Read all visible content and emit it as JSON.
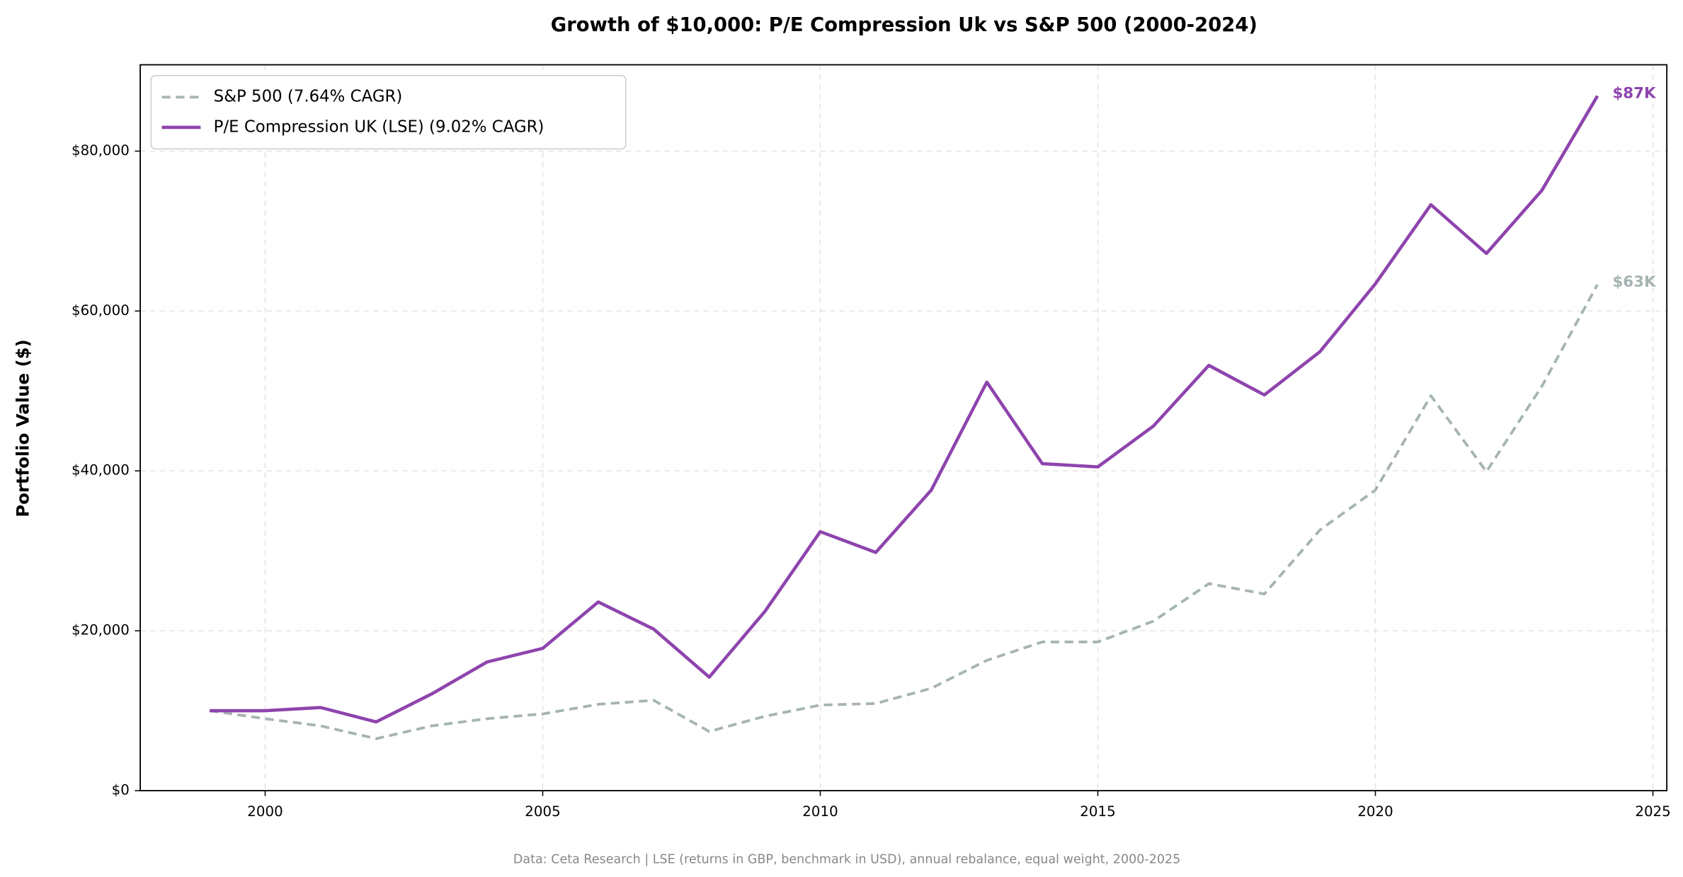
{
  "chart_data": {
    "type": "line",
    "title": "Growth of $10,000: P/E Compression Uk vs S&P 500 (2000-2024)",
    "ylabel": "Portfolio Value ($)",
    "source": "Data: Ceta Research | LSE (returns in GBP, benchmark in USD), annual rebalance, equal weight, 2000-2025",
    "x": [
      1999,
      2000,
      2001,
      2002,
      2003,
      2004,
      2005,
      2006,
      2007,
      2008,
      2009,
      2010,
      2011,
      2012,
      2013,
      2014,
      2015,
      2016,
      2017,
      2018,
      2019,
      2020,
      2021,
      2022,
      2023,
      2024
    ],
    "series": [
      {
        "name": "S&P 500 (7.64% CAGR)",
        "color": "#a5b4b2",
        "dashed": true,
        "end_label": "$63K",
        "values": [
          10000,
          9000,
          8100,
          6500,
          8100,
          9000,
          9600,
          10800,
          11300,
          7400,
          9300,
          10700,
          10900,
          12800,
          16300,
          18600,
          18600,
          21200,
          25900,
          24600,
          32600,
          37600,
          49400,
          39900,
          50600,
          63300
        ]
      },
      {
        "name": "P/E Compression UK (LSE) (9.02% CAGR)",
        "color": "#8e44ad",
        "dashed": false,
        "end_label": "$87K",
        "values": [
          10000,
          10000,
          10400,
          8600,
          12100,
          16100,
          17800,
          23600,
          20200,
          14200,
          22400,
          32400,
          29800,
          37600,
          51100,
          40900,
          40500,
          45600,
          53200,
          49500,
          54900,
          63400,
          73300,
          67200,
          75100,
          86900
        ]
      }
    ],
    "xlim": [
      1997.75,
      2025.25
    ],
    "xticks": [
      2000,
      2005,
      2010,
      2015,
      2020,
      2025
    ],
    "ylim": [
      0,
      90800
    ],
    "yticks": [
      {
        "value": 0,
        "label": "$0"
      },
      {
        "value": 20000,
        "label": "$20,000"
      },
      {
        "value": 40000,
        "label": "$40,000"
      },
      {
        "value": 60000,
        "label": "$60,000"
      },
      {
        "value": 80000,
        "label": "$80,000"
      }
    ],
    "grid": true,
    "legend": "upper left"
  }
}
